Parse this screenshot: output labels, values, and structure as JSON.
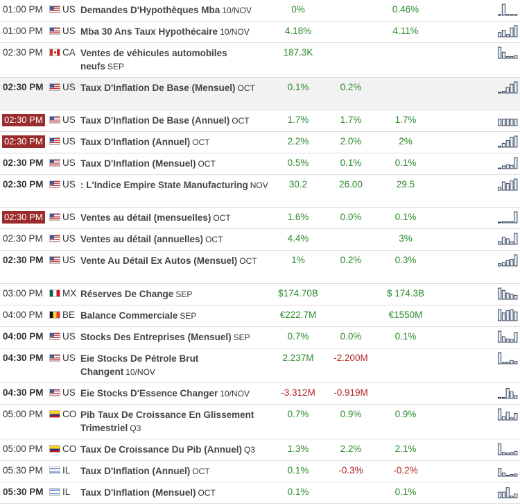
{
  "events": [
    {
      "time": "01:00 PM",
      "time_style": "plain",
      "country": "US",
      "name": "Demandes D'Hypothèques Mba",
      "suffix": "10/NOV",
      "actual": "0%",
      "actual_neg": false,
      "forecast": "",
      "forecast_neg": false,
      "previous": "0.46%",
      "previous_neg": false,
      "spark": [
        0,
        1,
        0,
        0,
        0
      ],
      "row_h": 30
    },
    {
      "time": "01:00 PM",
      "time_style": "plain",
      "country": "US",
      "name": "Mba 30 Ans Taux Hypothécaire",
      "suffix": "10/NOV",
      "actual": "4.18%",
      "actual_neg": false,
      "forecast": "",
      "forecast_neg": false,
      "previous": "4.11%",
      "previous_neg": false,
      "spark": [
        0.4,
        0.6,
        0.2,
        0.8,
        1
      ],
      "row_h": 30
    },
    {
      "time": "02:30 PM",
      "time_style": "plain",
      "country": "CA",
      "name": "Ventes de véhicules automobiles neufs",
      "suffix": "SEP",
      "actual": "187.3K",
      "actual_neg": false,
      "forecast": "",
      "forecast_neg": false,
      "previous": "",
      "previous_neg": false,
      "spark": [
        1,
        0.55,
        0.15,
        0.15,
        0.25
      ],
      "row_h": 47
    },
    {
      "time": "02:30 PM",
      "time_style": "bold",
      "country": "US",
      "name": "Taux D'Inflation De Base (Mensuel)",
      "suffix": "OCT",
      "actual": "0.1%",
      "actual_neg": false,
      "forecast": "0.2%",
      "forecast_neg": false,
      "previous": "",
      "previous_neg": false,
      "spark": [
        0,
        0.15,
        0.5,
        0.8,
        1
      ],
      "row_h": 47,
      "highlight": true
    },
    {
      "time": "02:30 PM",
      "time_style": "badge",
      "country": "US",
      "name": "Taux D'Inflation De Base (Annuel)",
      "suffix": "OCT",
      "actual": "1.7%",
      "actual_neg": false,
      "forecast": "1.7%",
      "forecast_neg": false,
      "previous": "1.7%",
      "previous_neg": false,
      "spark": [
        0.6,
        0.6,
        0.6,
        0.6,
        0.6
      ],
      "row_h": 29
    },
    {
      "time": "02:30 PM",
      "time_style": "badge",
      "country": "US",
      "name": "Taux D'Inflation (Annuel)",
      "suffix": "OCT",
      "actual": "2.2%",
      "actual_neg": false,
      "forecast": "2.0%",
      "forecast_neg": false,
      "previous": "2%",
      "previous_neg": false,
      "spark": [
        0.1,
        0.35,
        0.6,
        0.9,
        1
      ],
      "row_h": 30
    },
    {
      "time": "02:30 PM",
      "time_style": "bold",
      "country": "US",
      "name": "Taux D'Inflation (Mensuel)",
      "suffix": "OCT",
      "actual": "0.5%",
      "actual_neg": false,
      "forecast": "0.1%",
      "forecast_neg": false,
      "previous": "0.1%",
      "previous_neg": false,
      "spark": [
        0,
        0.25,
        0.35,
        0.3,
        1
      ],
      "row_h": 30
    },
    {
      "time": "02:30 PM",
      "time_style": "bold",
      "country": "US",
      "name": ": L'Indice Empire State Manufacturing",
      "suffix": "NOV",
      "actual": "30.2",
      "actual_neg": false,
      "forecast": "26.00",
      "forecast_neg": false,
      "previous": "29.5",
      "previous_neg": false,
      "spark": [
        0.25,
        0.75,
        0.6,
        0.85,
        1
      ],
      "row_h": 47
    },
    {
      "time": "02:30 PM",
      "time_style": "badge",
      "country": "US",
      "name": "Ventes au détail (mensuelles)",
      "suffix": "OCT",
      "actual": "1.6%",
      "actual_neg": false,
      "forecast": "0.0%",
      "forecast_neg": false,
      "previous": "0.1%",
      "previous_neg": false,
      "spark": [
        0,
        0.1,
        0.1,
        0.1,
        1
      ],
      "row_h": 30
    },
    {
      "time": "02:30 PM",
      "time_style": "plain",
      "country": "US",
      "name": "Ventes au détail (annuelles)",
      "suffix": "OCT",
      "actual": "4.4%",
      "actual_neg": false,
      "forecast": "",
      "forecast_neg": false,
      "previous": "3%",
      "previous_neg": false,
      "spark": [
        0.25,
        0.65,
        0.5,
        0.25,
        1
      ],
      "row_h": 29
    },
    {
      "time": "02:30 PM",
      "time_style": "bold",
      "country": "US",
      "name": "Vente Au Détail Ex Autos (Mensuel)",
      "suffix": "OCT",
      "actual": "1%",
      "actual_neg": false,
      "forecast": "0.2%",
      "forecast_neg": false,
      "previous": "0.3%",
      "previous_neg": false,
      "spark": [
        0.2,
        0.3,
        0.5,
        0.6,
        1
      ],
      "row_h": 48
    },
    {
      "time": "03:00 PM",
      "time_style": "plain",
      "country": "MX",
      "name": "Réserves De Change",
      "suffix": "SEP",
      "actual": "$174.70B",
      "actual_neg": false,
      "forecast": "",
      "forecast_neg": false,
      "previous": "$ 174.3B",
      "previous_neg": false,
      "spark": [
        1,
        0.8,
        0.55,
        0.45,
        0.35
      ],
      "row_h": 30
    },
    {
      "time": "04:00 PM",
      "time_style": "plain",
      "country": "BE",
      "name": "Balance Commerciale",
      "suffix": "SEP",
      "actual": "€222.7M",
      "actual_neg": false,
      "forecast": "",
      "forecast_neg": false,
      "previous": "€1550M",
      "previous_neg": false,
      "spark": [
        1,
        0.7,
        0.9,
        1,
        0.8
      ],
      "row_h": 29
    },
    {
      "time": "04:00 PM",
      "time_style": "bold",
      "country": "US",
      "name": "Stocks Des Entreprises (Mensuel)",
      "suffix": "SEP",
      "actual": "0.7%",
      "actual_neg": false,
      "forecast": "0.0%",
      "forecast_neg": false,
      "previous": "0.1%",
      "previous_neg": false,
      "spark": [
        1,
        0.5,
        0.3,
        0.25,
        0.9
      ],
      "row_h": 30
    },
    {
      "time": "04:30 PM",
      "time_style": "bold",
      "country": "US",
      "name": "Eie Stocks De Pétrole Brut Changent",
      "suffix": "10/NOV",
      "actual": "2.237M",
      "actual_neg": false,
      "forecast": "-2.200M",
      "forecast_neg": true,
      "previous": "",
      "previous_neg": false,
      "spark": [
        1,
        0.1,
        0.15,
        0.3,
        0.2
      ],
      "row_h": 47
    },
    {
      "time": "04:30 PM",
      "time_style": "bold",
      "country": "US",
      "name": "Eie Stocks D'Essence Changer",
      "suffix": "10/NOV",
      "actual": "-3.312M",
      "actual_neg": true,
      "forecast": "-0.919M",
      "forecast_neg": true,
      "previous": "",
      "previous_neg": false,
      "spark": [
        0.1,
        0.1,
        0.9,
        0.6,
        0.25
      ],
      "row_h": 29
    },
    {
      "time": "05:00 PM",
      "time_style": "plain",
      "country": "CO",
      "name": "Pib Taux De Croissance En Glissement Trimestriel",
      "suffix": "Q3",
      "actual": "0.7%",
      "actual_neg": false,
      "forecast": "0.9%",
      "forecast_neg": false,
      "previous": "0.9%",
      "previous_neg": false,
      "spark": [
        1,
        0.3,
        0.7,
        0.2,
        0.6
      ],
      "row_h": 47
    },
    {
      "time": "05:00 PM",
      "time_style": "plain",
      "country": "CO",
      "name": "Taux De Croissance Du Pib (Annuel)",
      "suffix": "Q3",
      "actual": "1.3%",
      "actual_neg": false,
      "forecast": "2.2%",
      "forecast_neg": false,
      "previous": "2.1%",
      "previous_neg": false,
      "spark": [
        1,
        0.2,
        0.15,
        0.2,
        0.3
      ],
      "row_h": 29
    },
    {
      "time": "05:30 PM",
      "time_style": "plain",
      "country": "IL",
      "name": "Taux D'Inflation (Annuel)",
      "suffix": "OCT",
      "actual": "0.1%",
      "actual_neg": false,
      "forecast": "-0.3%",
      "forecast_neg": true,
      "previous": "-0.2%",
      "previous_neg": true,
      "spark": [
        0.7,
        0.3,
        0.1,
        0.15,
        0.2
      ],
      "row_h": 30
    },
    {
      "time": "05:30 PM",
      "time_style": "bold",
      "country": "IL",
      "name": "Taux D'Inflation (Mensuel)",
      "suffix": "OCT",
      "actual": "0.1%",
      "actual_neg": false,
      "forecast": "",
      "forecast_neg": false,
      "previous": "0.1%",
      "previous_neg": false,
      "spark": [
        0.5,
        0.5,
        0.9,
        0.15,
        0.35
      ],
      "row_h": 30
    }
  ]
}
